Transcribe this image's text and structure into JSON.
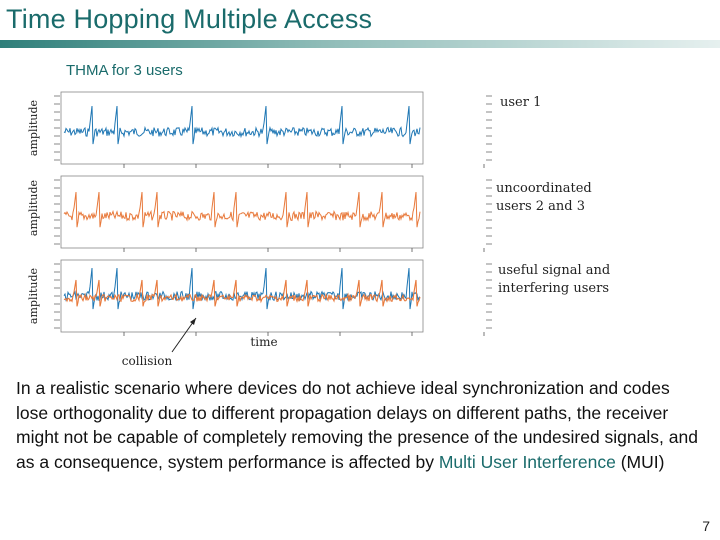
{
  "slide": {
    "title": "Time Hopping Multiple Access",
    "subtitle": "THMA for 3 users",
    "page_number": "7"
  },
  "figure": {
    "panels": [
      {
        "ylabel": "amplitude",
        "label_lines": [
          "user 1"
        ],
        "color": "#1f77b4"
      },
      {
        "ylabel": "amplitude",
        "label_lines": [
          "uncoordinated",
          "users 2 and 3"
        ],
        "color": "#e8793b"
      },
      {
        "ylabel": "amplitude",
        "label_lines": [
          "useful signal and",
          "interfering users"
        ],
        "color": "#1f77b4"
      }
    ],
    "xlabel": "time",
    "annotation": "collision",
    "colors": {
      "user_1": "#1f77b4",
      "users_2_3": "#e8793b"
    }
  },
  "body": {
    "text_before": "In a realistic scenario where devices do not achieve ideal synchronization and codes lose orthogonality due to different propagation delays on different paths, the receiver might not be capable of completely removing the presence of the undesired signals, and as a consequence, system performance is affected by ",
    "highlight_term": "Multi User Interference",
    "text_after": " (MUI)"
  }
}
